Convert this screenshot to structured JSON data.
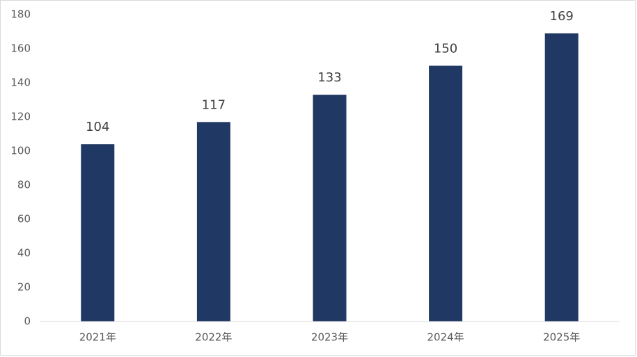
{
  "chart_data": {
    "type": "bar",
    "categories": [
      "2021年",
      "2022年",
      "2023年",
      "2024年",
      "2025年"
    ],
    "values": [
      104,
      117,
      133,
      150,
      169
    ],
    "color": "#203864",
    "ylim": [
      0,
      180
    ],
    "yticks": [
      0,
      20,
      40,
      60,
      80,
      100,
      120,
      140,
      160,
      180
    ],
    "grid": false,
    "data_labels": true
  }
}
